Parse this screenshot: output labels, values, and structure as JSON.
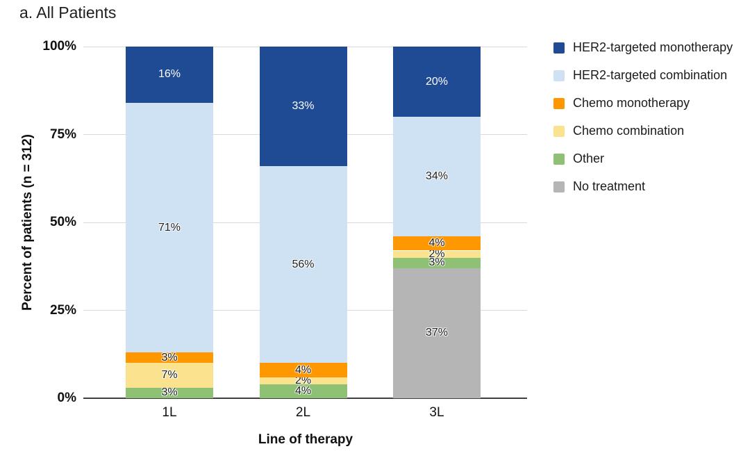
{
  "page": {
    "background_color": "#FFFFFF",
    "grid_color": "#D9D9D9",
    "axis_line_color": "#3F3F3F"
  },
  "chart_data": {
    "type": "bar",
    "stacked": true,
    "title": "a. All Patients",
    "xlabel": "Line of therapy",
    "ylabel": "Percent of patients (n = 312)",
    "categories": [
      "1L",
      "2L",
      "3L"
    ],
    "series": [
      {
        "name": "HER2-targeted monotherapy",
        "color": "#1F4A94",
        "label_color": "#FFFFFF",
        "values": [
          16,
          33,
          20
        ]
      },
      {
        "name": "HER2-targeted combination",
        "color": "#CFE2F3",
        "label_color": "#1E1E1E",
        "values": [
          71,
          56,
          34
        ]
      },
      {
        "name": "Chemo monotherapy",
        "color": "#FF9800",
        "label_color": "#1E1E1E",
        "values": [
          3,
          4,
          4
        ]
      },
      {
        "name": "Chemo combination",
        "color": "#FBE28F",
        "label_color": "#1E1E1E",
        "values": [
          7,
          2,
          2
        ]
      },
      {
        "name": "Other",
        "color": "#8FC174",
        "label_color": "#1E1E1E",
        "values": [
          3,
          4,
          3
        ]
      },
      {
        "name": "No treatment",
        "color": "#B5B5B5",
        "label_color": "#1E1E1E",
        "values": [
          0,
          0,
          37
        ]
      }
    ],
    "ylim": [
      0,
      100
    ],
    "yticks": [
      0,
      25,
      50,
      75,
      100
    ],
    "ytick_labels": [
      "0%",
      "25%",
      "50%",
      "75%",
      "100%"
    ],
    "value_label_suffix": "%",
    "grid": true,
    "legend_position": "right",
    "stacking_note": "series listed top-to-bottom of stack; legend order matches"
  }
}
